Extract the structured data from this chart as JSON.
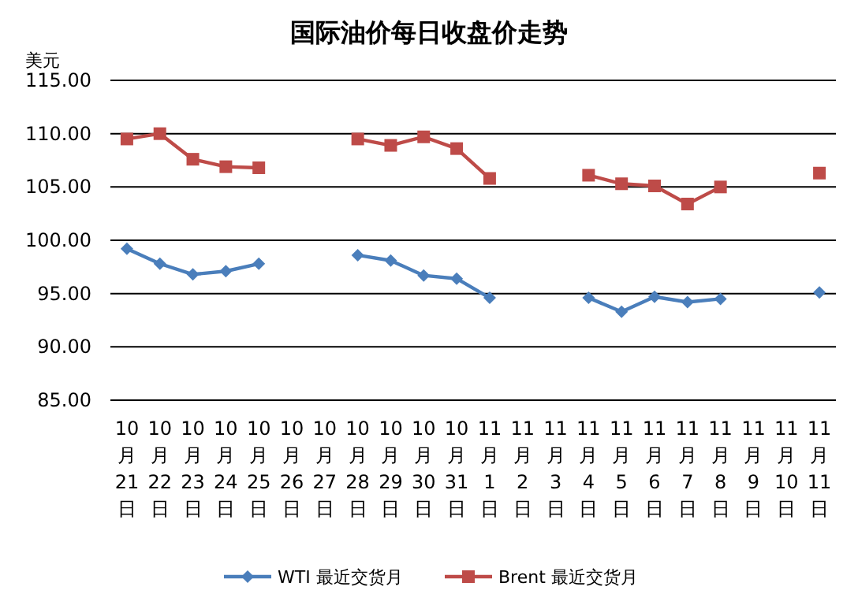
{
  "chart_data": {
    "type": "line",
    "title": "国际油价每日收盘价走势",
    "ylabel": "美元",
    "categories": [
      "10月21日",
      "10月22日",
      "10月23日",
      "10月24日",
      "10月25日",
      "10月26日",
      "10月27日",
      "10月28日",
      "10月29日",
      "10月30日",
      "10月31日",
      "11月1日",
      "11月2日",
      "11月3日",
      "11月4日",
      "11月5日",
      "11月6日",
      "11月7日",
      "11月8日",
      "11月9日",
      "11月10日",
      "11月11日"
    ],
    "series": [
      {
        "name": "WTI 最近交货月",
        "color": "#4a7ebb",
        "marker": "diamond",
        "values": [
          99.2,
          97.8,
          96.8,
          97.1,
          97.8,
          null,
          null,
          98.6,
          98.1,
          96.7,
          96.4,
          94.6,
          null,
          null,
          94.6,
          93.3,
          94.7,
          94.2,
          94.5,
          null,
          null,
          95.1
        ]
      },
      {
        "name": "Brent 最近交货月",
        "color": "#be4b48",
        "marker": "square",
        "values": [
          109.5,
          110.0,
          107.6,
          106.9,
          106.8,
          null,
          null,
          109.5,
          108.9,
          109.7,
          108.6,
          105.8,
          null,
          null,
          106.1,
          105.3,
          105.1,
          103.4,
          105.0,
          null,
          null,
          106.3
        ]
      }
    ],
    "ylim": [
      85,
      115
    ],
    "yticks": [
      {
        "value": 85,
        "label": "85.00"
      },
      {
        "value": 90,
        "label": "90.00"
      },
      {
        "value": 95,
        "label": "95.00"
      },
      {
        "value": 100,
        "label": "100.00"
      },
      {
        "value": 105,
        "label": "105.00"
      },
      {
        "value": 110,
        "label": "110.00"
      },
      {
        "value": 115,
        "label": "115.00"
      }
    ],
    "grid": "y",
    "legend": "bottom",
    "line_style": "solid"
  }
}
